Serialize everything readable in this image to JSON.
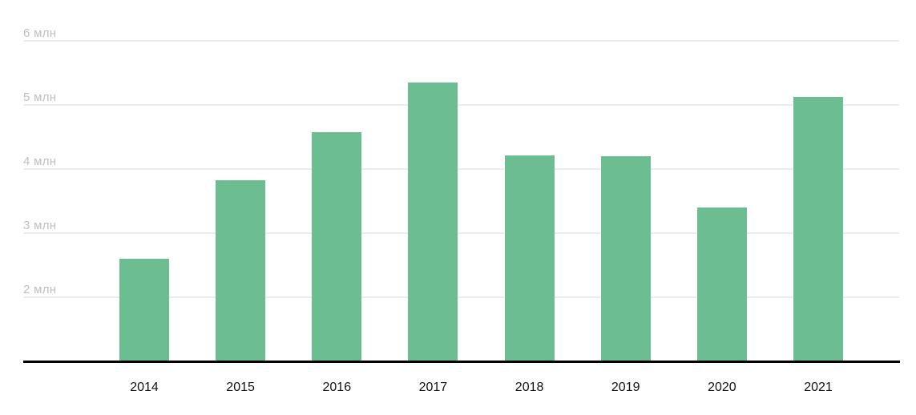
{
  "chart_data": {
    "type": "bar",
    "title": "",
    "categories": [
      "2014",
      "2015",
      "2016",
      "2017",
      "2018",
      "2019",
      "2020",
      "2021"
    ],
    "values": [
      2.6,
      3.82,
      4.57,
      5.35,
      4.21,
      4.2,
      3.4,
      5.13
    ],
    "value_unit": "млн",
    "xlabel": "",
    "ylabel": "",
    "yticks": [
      2,
      3,
      4,
      5,
      6
    ],
    "ytick_labels": [
      "2 млн",
      "3 млн",
      "4 млн",
      "5 млн",
      "6 млн"
    ],
    "ylim": [
      1,
      6.6
    ],
    "grid": true,
    "legend": false,
    "colors": {
      "bar": "#6cbd92",
      "gridline": "#ececec",
      "axis_line": "#000000",
      "y_tick_text": "#bcbfc2",
      "x_tick_text": "#111111",
      "background": "#ffffff"
    }
  }
}
